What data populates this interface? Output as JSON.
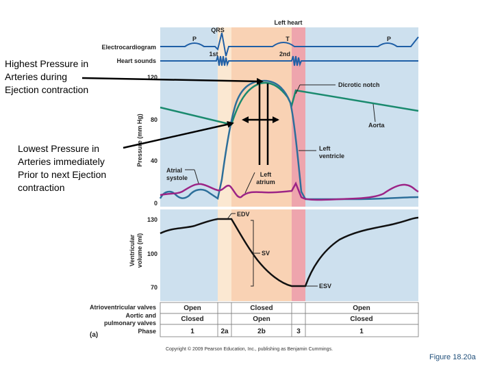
{
  "figure": {
    "header": "Left heart",
    "ecg": {
      "label": "Electrocardiogram",
      "waves": [
        "P",
        "QRS",
        "T",
        "P"
      ]
    },
    "heart_sounds": {
      "label": "Heart sounds",
      "sounds": [
        "1st",
        "2nd"
      ]
    },
    "pressure_axis": {
      "label": "Pressure (mm Hg)",
      "ticks": [
        "120",
        "80",
        "40",
        "0"
      ]
    },
    "volume_axis": {
      "label": "Ventricular\nvolume (ml)",
      "ticks": [
        "130",
        "100",
        "70"
      ]
    },
    "annotations": {
      "dicrotic_notch": "Dicrotic notch",
      "aorta": "Aorta",
      "left_ventricle": "Left\nventricle",
      "atrial_systole": "Atrial\nsystole",
      "left_atrium": "Left\natrium",
      "edv": "EDV",
      "sv": "SV",
      "esv": "ESV"
    },
    "valves_table": {
      "av_label": "Atrioventricular valves",
      "semilunar_label": "Aortic and\npulmonary valves",
      "phase_label": "Phase",
      "av_states": [
        "Open",
        "Closed",
        "Open"
      ],
      "semilunar_states": [
        "Closed",
        "Open",
        "Closed"
      ],
      "phases": [
        "1",
        "2a",
        "2b",
        "3",
        "1"
      ]
    },
    "panel_letter": "(a)",
    "copyright": "Copyright © 2009 Pearson Education, Inc., publishing as Benjamin Cummings."
  },
  "callouts": {
    "highest": "Highest Pressure in\nArteries during\nEjection contraction",
    "lowest": "Lowest Pressure in\nArteries immediately\nPrior to next Ejection\ncontraction"
  },
  "caption": "Figure 18.20a",
  "colors": {
    "phase1_band": "#cde0ee",
    "phase2a_band": "#fbe8d2",
    "phase2b_band": "#f9d2b4",
    "phase3_band": "#eea5ad",
    "ecg_line": "#1f5fa6",
    "aorta_line": "#1a8a6e",
    "ventricle_line": "#2d6f9a",
    "atrium_line": "#9c2486",
    "caption_text": "#1f4e79"
  }
}
